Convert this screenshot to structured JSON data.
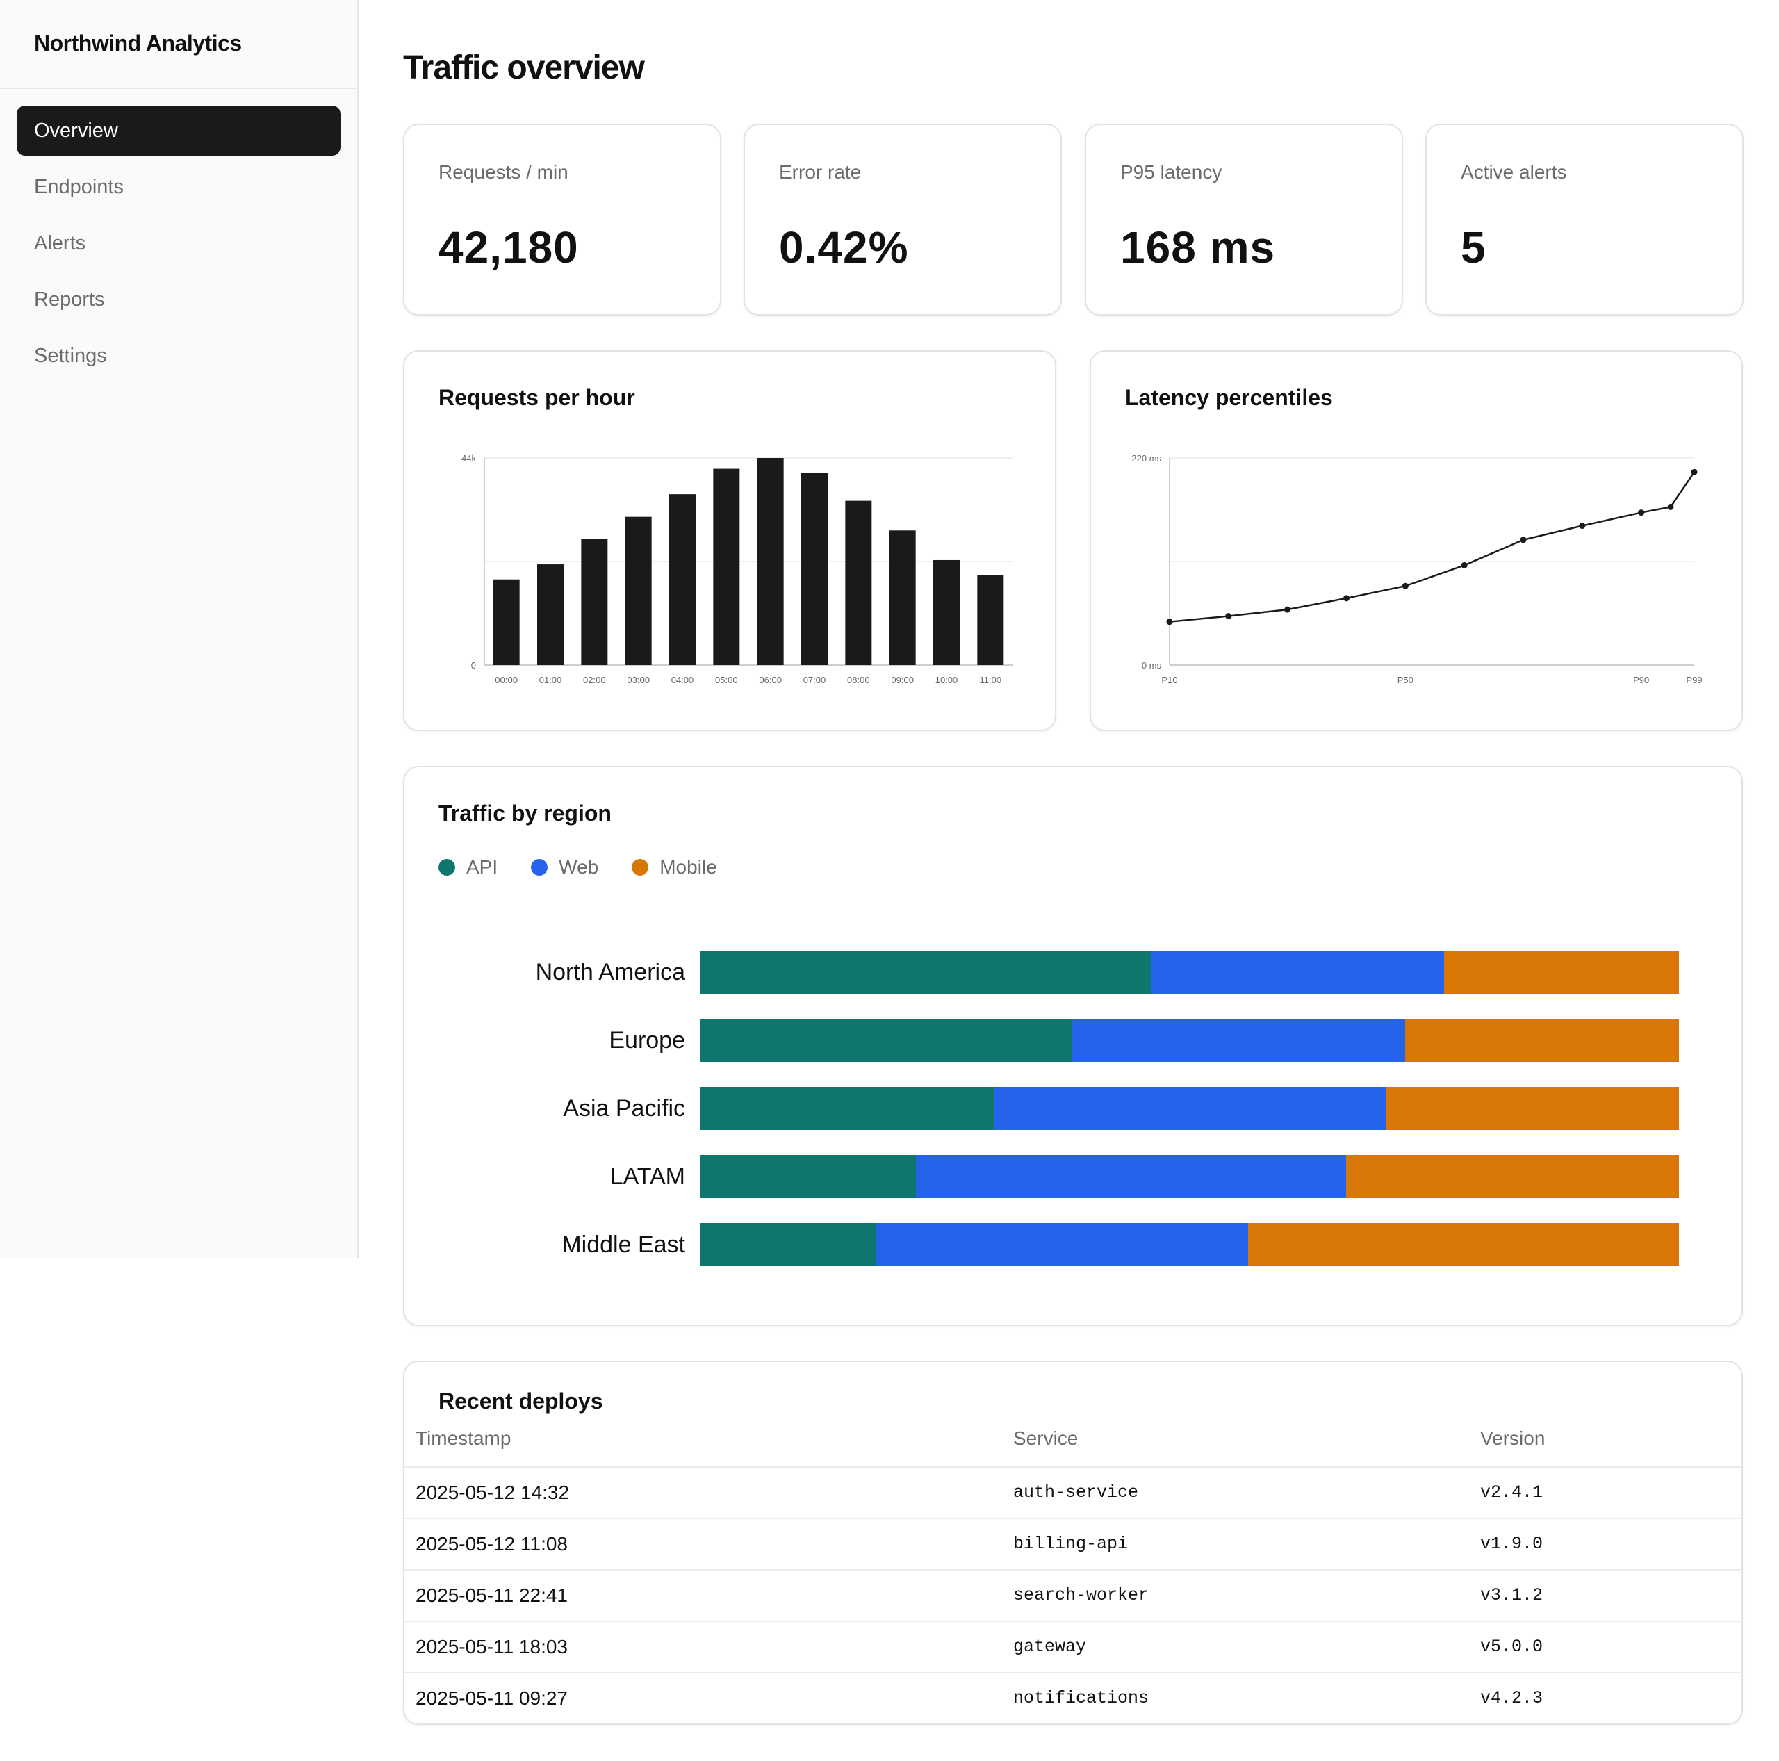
{
  "app": {
    "name": "Northwind Analytics"
  },
  "sidebar": {
    "items": [
      {
        "label": "Overview",
        "active": true
      },
      {
        "label": "Endpoints"
      },
      {
        "label": "Alerts"
      },
      {
        "label": "Reports"
      },
      {
        "label": "Settings"
      }
    ]
  },
  "page": {
    "title": "Traffic overview"
  },
  "kpis": [
    {
      "label": "Requests / min",
      "value": "42,180"
    },
    {
      "label": "Error rate",
      "value": "0.42%"
    },
    {
      "label": "P95 latency",
      "value": "168 ms"
    },
    {
      "label": "Active alerts",
      "value": "5"
    }
  ],
  "charts": {
    "requests": {
      "title": "Requests per hour"
    },
    "latency": {
      "title": "Latency percentiles"
    },
    "region": {
      "title": "Traffic by region"
    }
  },
  "chart_data": [
    {
      "type": "bar",
      "title": "Requests per hour",
      "categories": [
        "00:00",
        "01:00",
        "02:00",
        "03:00",
        "04:00",
        "05:00",
        "06:00",
        "07:00",
        "08:00",
        "09:00",
        "10:00",
        "11:00"
      ],
      "values": [
        18200,
        21400,
        26800,
        31500,
        36300,
        41700,
        44000,
        40900,
        34900,
        28600,
        22300,
        19100
      ],
      "ylim": [
        0,
        44000
      ],
      "y_ticks": [
        "0",
        "44k"
      ],
      "grid": true,
      "color": "#1a1a1a"
    },
    {
      "type": "line",
      "title": "Latency percentiles",
      "x": [
        10,
        20,
        30,
        40,
        50,
        60,
        70,
        80,
        90,
        95,
        99
      ],
      "values": [
        46,
        52,
        59,
        71,
        84,
        106,
        133,
        148,
        162,
        168,
        205
      ],
      "xlim": [
        10,
        99
      ],
      "ylim": [
        0,
        220
      ],
      "x_ticks": [
        {
          "value": 10,
          "label": "P10"
        },
        {
          "value": 50,
          "label": "P50"
        },
        {
          "value": 90,
          "label": "P90"
        },
        {
          "value": 99,
          "label": "P99"
        }
      ],
      "y_ticks": [
        "0 ms",
        "220 ms"
      ],
      "grid": true,
      "color": "#1a1a1a"
    },
    {
      "type": "bar",
      "stacked": true,
      "orientation": "horizontal",
      "title": "Traffic by region",
      "categories": [
        "North America",
        "Europe",
        "Asia Pacific",
        "LATAM",
        "Middle East"
      ],
      "series": [
        {
          "name": "API",
          "color": "#0f766e",
          "values": [
            46,
            38,
            30,
            22,
            18
          ]
        },
        {
          "name": "Web",
          "color": "#2563eb",
          "values": [
            30,
            34,
            40,
            44,
            38
          ]
        },
        {
          "name": "Mobile",
          "color": "#d97706",
          "values": [
            24,
            28,
            30,
            34,
            44
          ]
        }
      ],
      "legend": "top-left"
    }
  ],
  "deploys": {
    "title": "Recent deploys",
    "columns": [
      "Timestamp",
      "Service",
      "Version"
    ],
    "rows": [
      [
        "2025-05-12 14:32",
        "auth-service",
        "v2.4.1"
      ],
      [
        "2025-05-12 11:08",
        "billing-api",
        "v1.9.0"
      ],
      [
        "2025-05-11 22:41",
        "search-worker",
        "v3.1.2"
      ],
      [
        "2025-05-11 18:03",
        "gateway",
        "v5.0.0"
      ],
      [
        "2025-05-11 09:27",
        "notifications",
        "v4.2.3"
      ]
    ]
  }
}
